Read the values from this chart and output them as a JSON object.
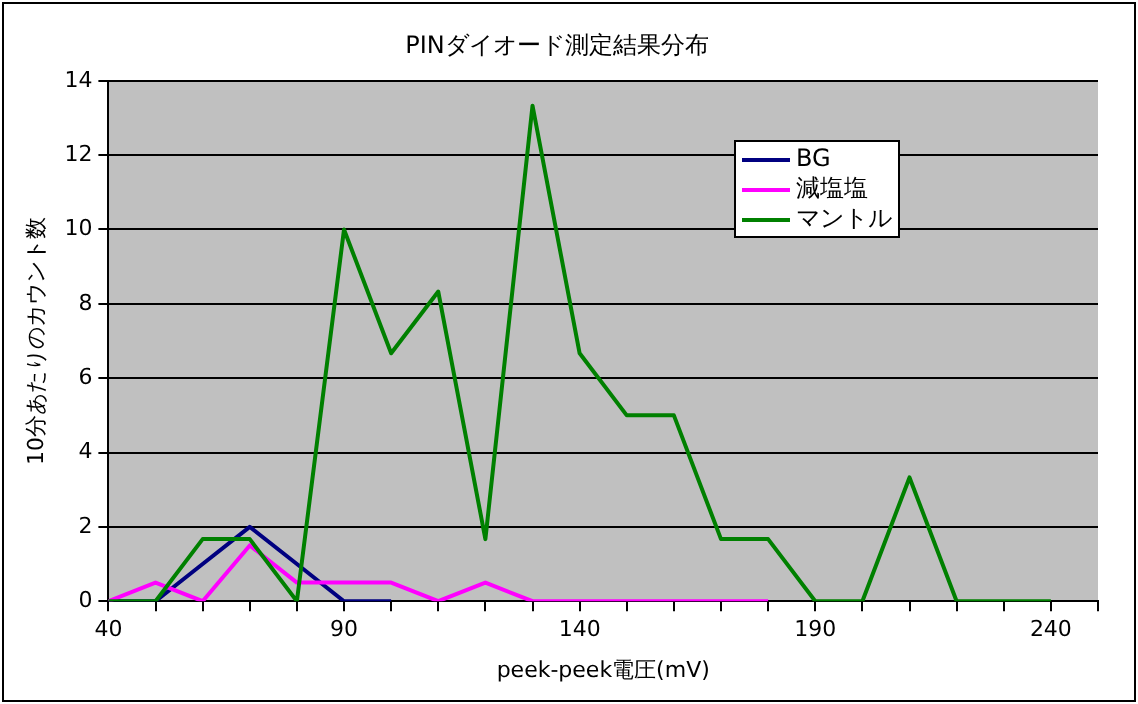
{
  "chart_data": {
    "type": "line",
    "title": "PINダイオード測定結果分布",
    "xlabel": "peek-peek電圧(mV)",
    "ylabel": "10分あたりのカウント数",
    "x": [
      40,
      50,
      60,
      70,
      80,
      90,
      100,
      110,
      120,
      130,
      140,
      150,
      160,
      170,
      180,
      190,
      200,
      210,
      220,
      230,
      240
    ],
    "series": [
      {
        "name": "BG",
        "color": "#000080",
        "values": [
          0,
          0,
          1,
          2,
          1,
          0,
          0,
          null,
          null,
          null,
          null,
          null,
          null,
          null,
          null,
          null,
          null,
          null,
          null,
          null,
          null
        ]
      },
      {
        "name": "減塩塩",
        "color": "#ff00ff",
        "values": [
          0,
          0.5,
          0,
          1.5,
          0.5,
          0.5,
          0.5,
          0,
          0.5,
          0,
          0,
          0,
          0,
          0,
          0,
          null,
          null,
          null,
          null,
          null,
          null
        ]
      },
      {
        "name": "マントル",
        "color": "#008000",
        "values": [
          0,
          0,
          1.67,
          1.67,
          0,
          10,
          6.67,
          8.33,
          1.67,
          13.33,
          6.67,
          5,
          5,
          1.67,
          1.67,
          0,
          0,
          3.33,
          0,
          0,
          0
        ]
      }
    ],
    "xlim": [
      40,
      250
    ],
    "xticks": [
      40,
      {
        "value": 50,
        "label": null
      },
      {
        "value": 60,
        "label": null
      },
      {
        "value": 70,
        "label": null
      },
      {
        "value": 80,
        "label": null
      },
      90,
      {
        "value": 100,
        "label": null
      },
      {
        "value": 110,
        "label": null
      },
      {
        "value": 120,
        "label": null
      },
      {
        "value": 130,
        "label": null
      },
      140,
      {
        "value": 150,
        "label": null
      },
      {
        "value": 160,
        "label": null
      },
      {
        "value": 170,
        "label": null
      },
      {
        "value": 180,
        "label": null
      },
      190,
      {
        "value": 200,
        "label": null
      },
      {
        "value": 210,
        "label": null
      },
      {
        "value": 220,
        "label": null
      },
      {
        "value": 230,
        "label": null
      },
      240,
      {
        "value": 250,
        "label": null
      }
    ],
    "ylim": [
      0,
      14
    ],
    "yticks": [
      0,
      2,
      4,
      6,
      8,
      10,
      12,
      14
    ],
    "grid": "y",
    "legend": "top right",
    "marker": "none",
    "line_style": "solid"
  }
}
